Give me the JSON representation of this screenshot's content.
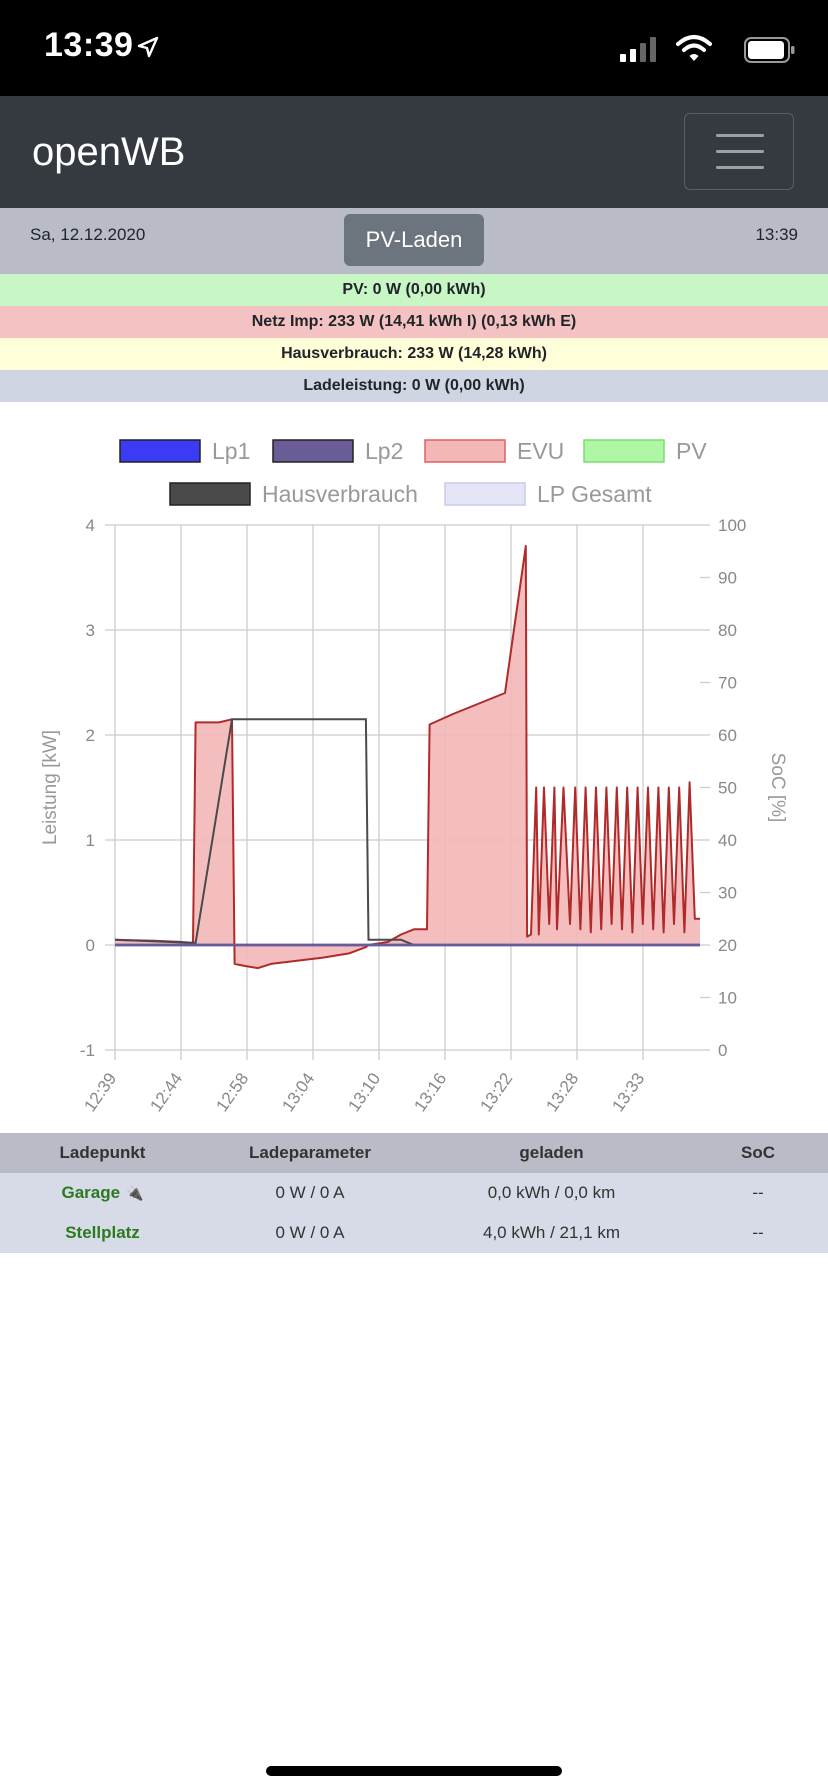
{
  "status_bar": {
    "time": "13:39"
  },
  "navbar": {
    "brand": "openWB"
  },
  "info_bar": {
    "date": "Sa, 12.12.2020",
    "time": "13:39",
    "mode_button": "PV-Laden"
  },
  "summary": {
    "pv": "PV: 0 W (0,00 kWh)",
    "evu": "Netz Imp: 233 W (14,41 kWh I) (0,13 kWh E)",
    "haus": "Hausverbrauch: 233 W (14,28 kWh)",
    "lade": "Ladeleistung: 0 W (0,00 kWh)"
  },
  "colors": {
    "lp1": "#3b3bf5",
    "lp2": "#6a5c96",
    "evu": "#f4b7b7",
    "evu_line": "#b02a2a",
    "pv": "#aef5a4",
    "haus": "#4a4a4a",
    "lp_gesamt": "#e4e4f7"
  },
  "chart_data": {
    "type": "area",
    "title": "",
    "legend": [
      {
        "name": "Lp1",
        "color": "#3b3bf5"
      },
      {
        "name": "Lp2",
        "color": "#6a5c96"
      },
      {
        "name": "EVU",
        "color": "#f4b7b7"
      },
      {
        "name": "PV",
        "color": "#aef5a4"
      },
      {
        "name": "Hausverbrauch",
        "color": "#4a4a4a"
      },
      {
        "name": "LP Gesamt",
        "color": "#e4e4f7"
      }
    ],
    "legend_position": "top",
    "ylabel": "Leistung [kW]",
    "y2label": "SoC [%]",
    "ylim": [
      -1,
      4
    ],
    "y2lim": [
      0,
      100
    ],
    "yticks": [
      "4",
      "3",
      "2",
      "1",
      "0",
      "-1"
    ],
    "y2ticks": [
      "100",
      "90",
      "80",
      "70",
      "60",
      "50",
      "40",
      "30",
      "20",
      "10",
      "0"
    ],
    "xticks": [
      "12:39",
      "12:44",
      "12:58",
      "13:04",
      "13:10",
      "13:16",
      "13:22",
      "13:28",
      "13:33"
    ],
    "xlim": [
      0,
      45
    ],
    "grid": true,
    "series": [
      {
        "name": "EVU",
        "x": [
          0,
          3,
          5,
          6,
          6.2,
          8,
          9,
          9.2,
          10,
          11,
          12,
          14,
          16,
          18,
          19.3,
          19.5,
          21,
          22,
          23,
          24,
          24.2,
          26,
          28,
          30,
          31.6,
          31.7,
          32.0,
          32.4,
          32.6,
          33.0,
          33.4,
          33.8,
          34.0,
          34.5,
          35.0,
          35.4,
          35.8,
          36.2,
          36.6,
          37.0,
          37.4,
          37.8,
          38.2,
          38.6,
          39.0,
          39.4,
          39.8,
          40.2,
          40.6,
          41.0,
          41.4,
          41.8,
          42.2,
          42.6,
          43.0,
          43.4,
          43.8,
          44.2,
          44.6,
          45
        ],
        "y": [
          0.05,
          0.04,
          0.03,
          0.02,
          2.12,
          2.12,
          2.15,
          -0.18,
          -0.2,
          -0.22,
          -0.18,
          -0.15,
          -0.12,
          -0.08,
          -0.02,
          0.0,
          0.03,
          0.1,
          0.15,
          0.15,
          2.1,
          2.2,
          2.3,
          2.4,
          3.8,
          0.08,
          0.1,
          1.5,
          0.1,
          1.5,
          0.2,
          1.5,
          0.15,
          1.5,
          0.2,
          1.5,
          0.15,
          1.5,
          0.12,
          1.5,
          0.15,
          1.5,
          0.2,
          1.5,
          0.15,
          1.5,
          0.12,
          1.5,
          0.2,
          1.5,
          0.15,
          1.5,
          0.12,
          1.5,
          0.2,
          1.5,
          0.12,
          1.55,
          0.25,
          0.25
        ]
      },
      {
        "name": "Hausverbrauch",
        "x": [
          0,
          6,
          6.2,
          9,
          9.2,
          19.3,
          19.5,
          22,
          23,
          45
        ],
        "y": [
          0.05,
          0.02,
          0.02,
          2.15,
          2.15,
          2.15,
          0.05,
          0.05,
          0.0,
          0.0
        ]
      },
      {
        "name": "Lp1",
        "x": [
          0,
          45
        ],
        "y": [
          0,
          0
        ]
      },
      {
        "name": "Lp2",
        "x": [
          0,
          45
        ],
        "y": [
          0,
          0
        ]
      }
    ]
  },
  "table": {
    "headers": [
      "Ladepunkt",
      "Ladeparameter",
      "geladen",
      "SoC"
    ],
    "rows": [
      {
        "name": "Garage",
        "param": "0 W / 0 A",
        "geladen": "0,0 kWh / 0,0 km",
        "soc": "--"
      },
      {
        "name": "Stellplatz",
        "param": "0 W / 0 A",
        "geladen": "4,0 kWh / 21,1 km",
        "soc": "--"
      }
    ]
  }
}
